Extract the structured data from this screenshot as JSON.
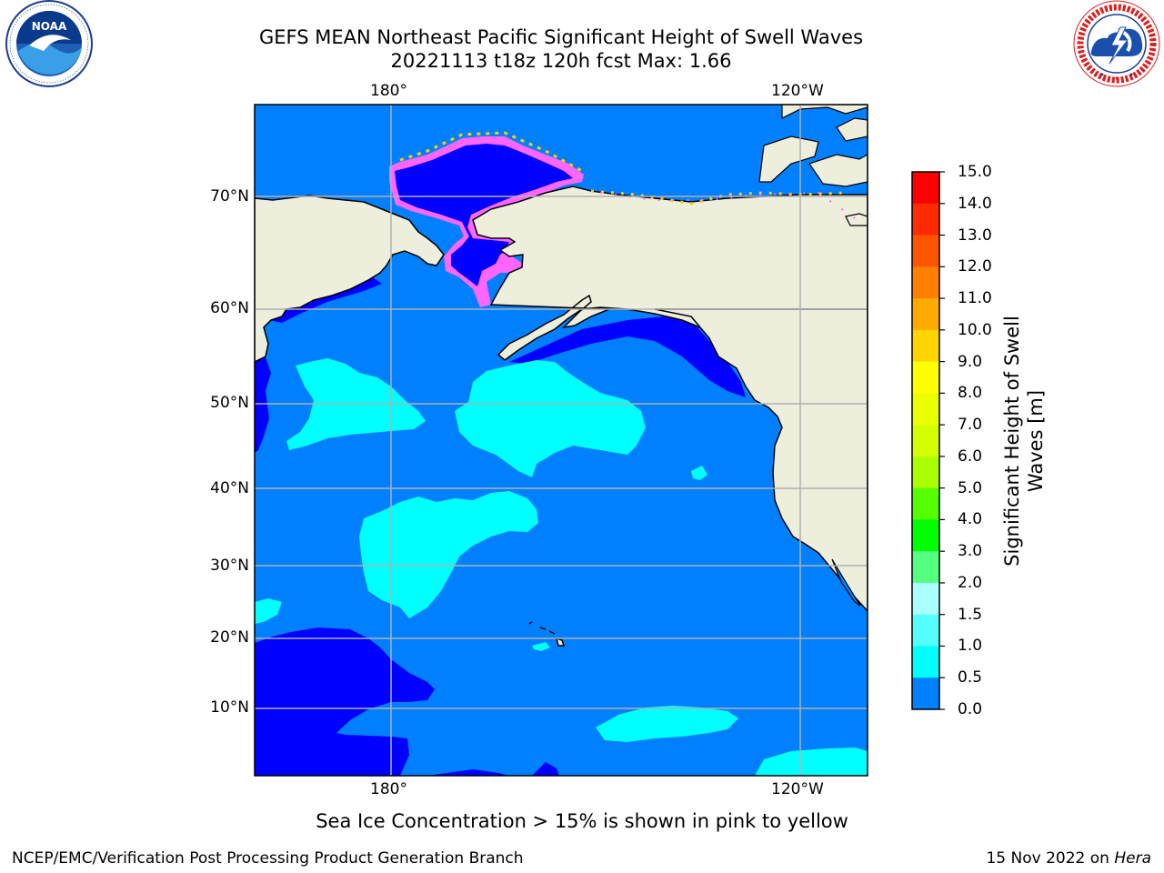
{
  "header": {
    "title_line1": "GEFS MEAN Northeast Pacific Significant Height of Swell Waves",
    "title_line2": "20221113 t18z 120h fcst   Max: 1.66"
  },
  "logos": {
    "left": {
      "icon": "noaa-logo-icon",
      "text": "NOAA",
      "ring_text": "NATIONAL OCEANIC AND ATMOSPHERIC ADMINISTRATION · U.S. DEPARTMENT OF COMMERCE"
    },
    "right": {
      "icon": "nws-logo-icon",
      "ring_text": "NATIONAL WEATHER SERVICE"
    }
  },
  "map": {
    "lon_ticks_top": [
      "180°",
      "120°W"
    ],
    "lon_ticks_bottom": [
      "180°",
      "120°W"
    ],
    "lat_ticks": [
      "70°N",
      "60°N",
      "50°N",
      "40°N",
      "30°N",
      "20°N",
      "10°N"
    ],
    "colors": {
      "land": "#eeeedd",
      "ocean_0_0_5": "#0000ff",
      "ocean_0_5_1_0": "#0080ff",
      "ocean_1_0_1_5": "#00ffff",
      "ocean_1_5_2_0": "#55ffff",
      "ice_pink": "#ff66ff",
      "ice_yellow": "#ffcc00",
      "grid": "#b0b0b0"
    }
  },
  "colorbar": {
    "title": "Significant Height of Swell Waves [m]",
    "labels": [
      "15.0",
      "14.0",
      "13.0",
      "12.0",
      "11.0",
      "10.0",
      "9.0",
      "8.0",
      "7.0",
      "6.0",
      "5.0",
      "4.0",
      "3.0",
      "2.0",
      "1.5",
      "1.0",
      "0.5",
      "0.0"
    ],
    "colors_top_to_bottom": [
      "#ff0000",
      "#ff2a00",
      "#ff5500",
      "#ff7f00",
      "#ffaa00",
      "#ffd400",
      "#ffff00",
      "#eaff00",
      "#d4ff00",
      "#aaff00",
      "#55ff00",
      "#00ff00",
      "#55ff80",
      "#aaffff",
      "#55ffff",
      "#00ffff",
      "#0080ff",
      "#0000ff"
    ]
  },
  "notes": {
    "ice": "Sea Ice Concentration > 15% is shown in pink to yellow"
  },
  "footer": {
    "left": "NCEP/EMC/Verification Post Processing Product Generation Branch",
    "right_date": "15 Nov 2022 on",
    "right_machine": "Hera"
  }
}
